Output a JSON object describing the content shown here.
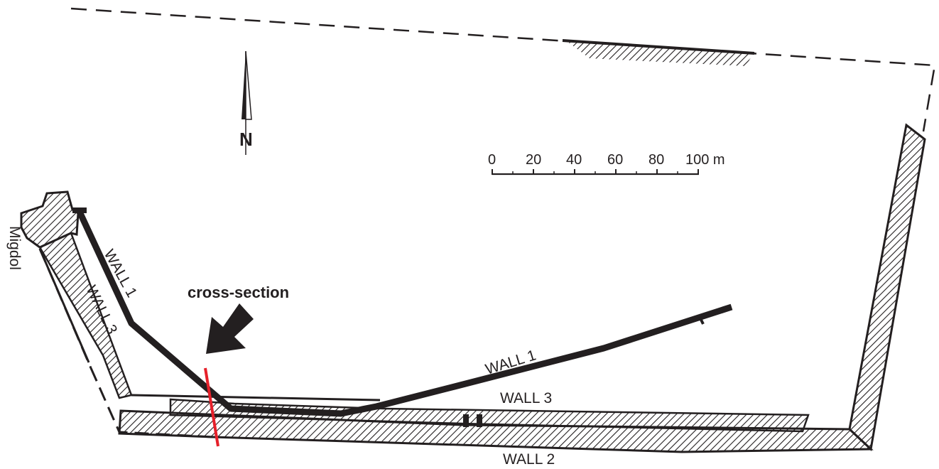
{
  "labels": {
    "wall_1_west": "WALL 1",
    "wall_3_west": "WALL 3",
    "migdol": "Migdol",
    "cross_section": "cross-section",
    "wall_1_south": "WALL 1",
    "wall_3_south": "WALL 3",
    "wall_2": "WALL 2",
    "north": "N"
  },
  "scale_bar": {
    "ticks": [
      "0",
      "20",
      "40",
      "60",
      "80",
      "100 m"
    ]
  },
  "colors": {
    "ink": "#231f20",
    "cross_section_line": "#e6202a"
  }
}
